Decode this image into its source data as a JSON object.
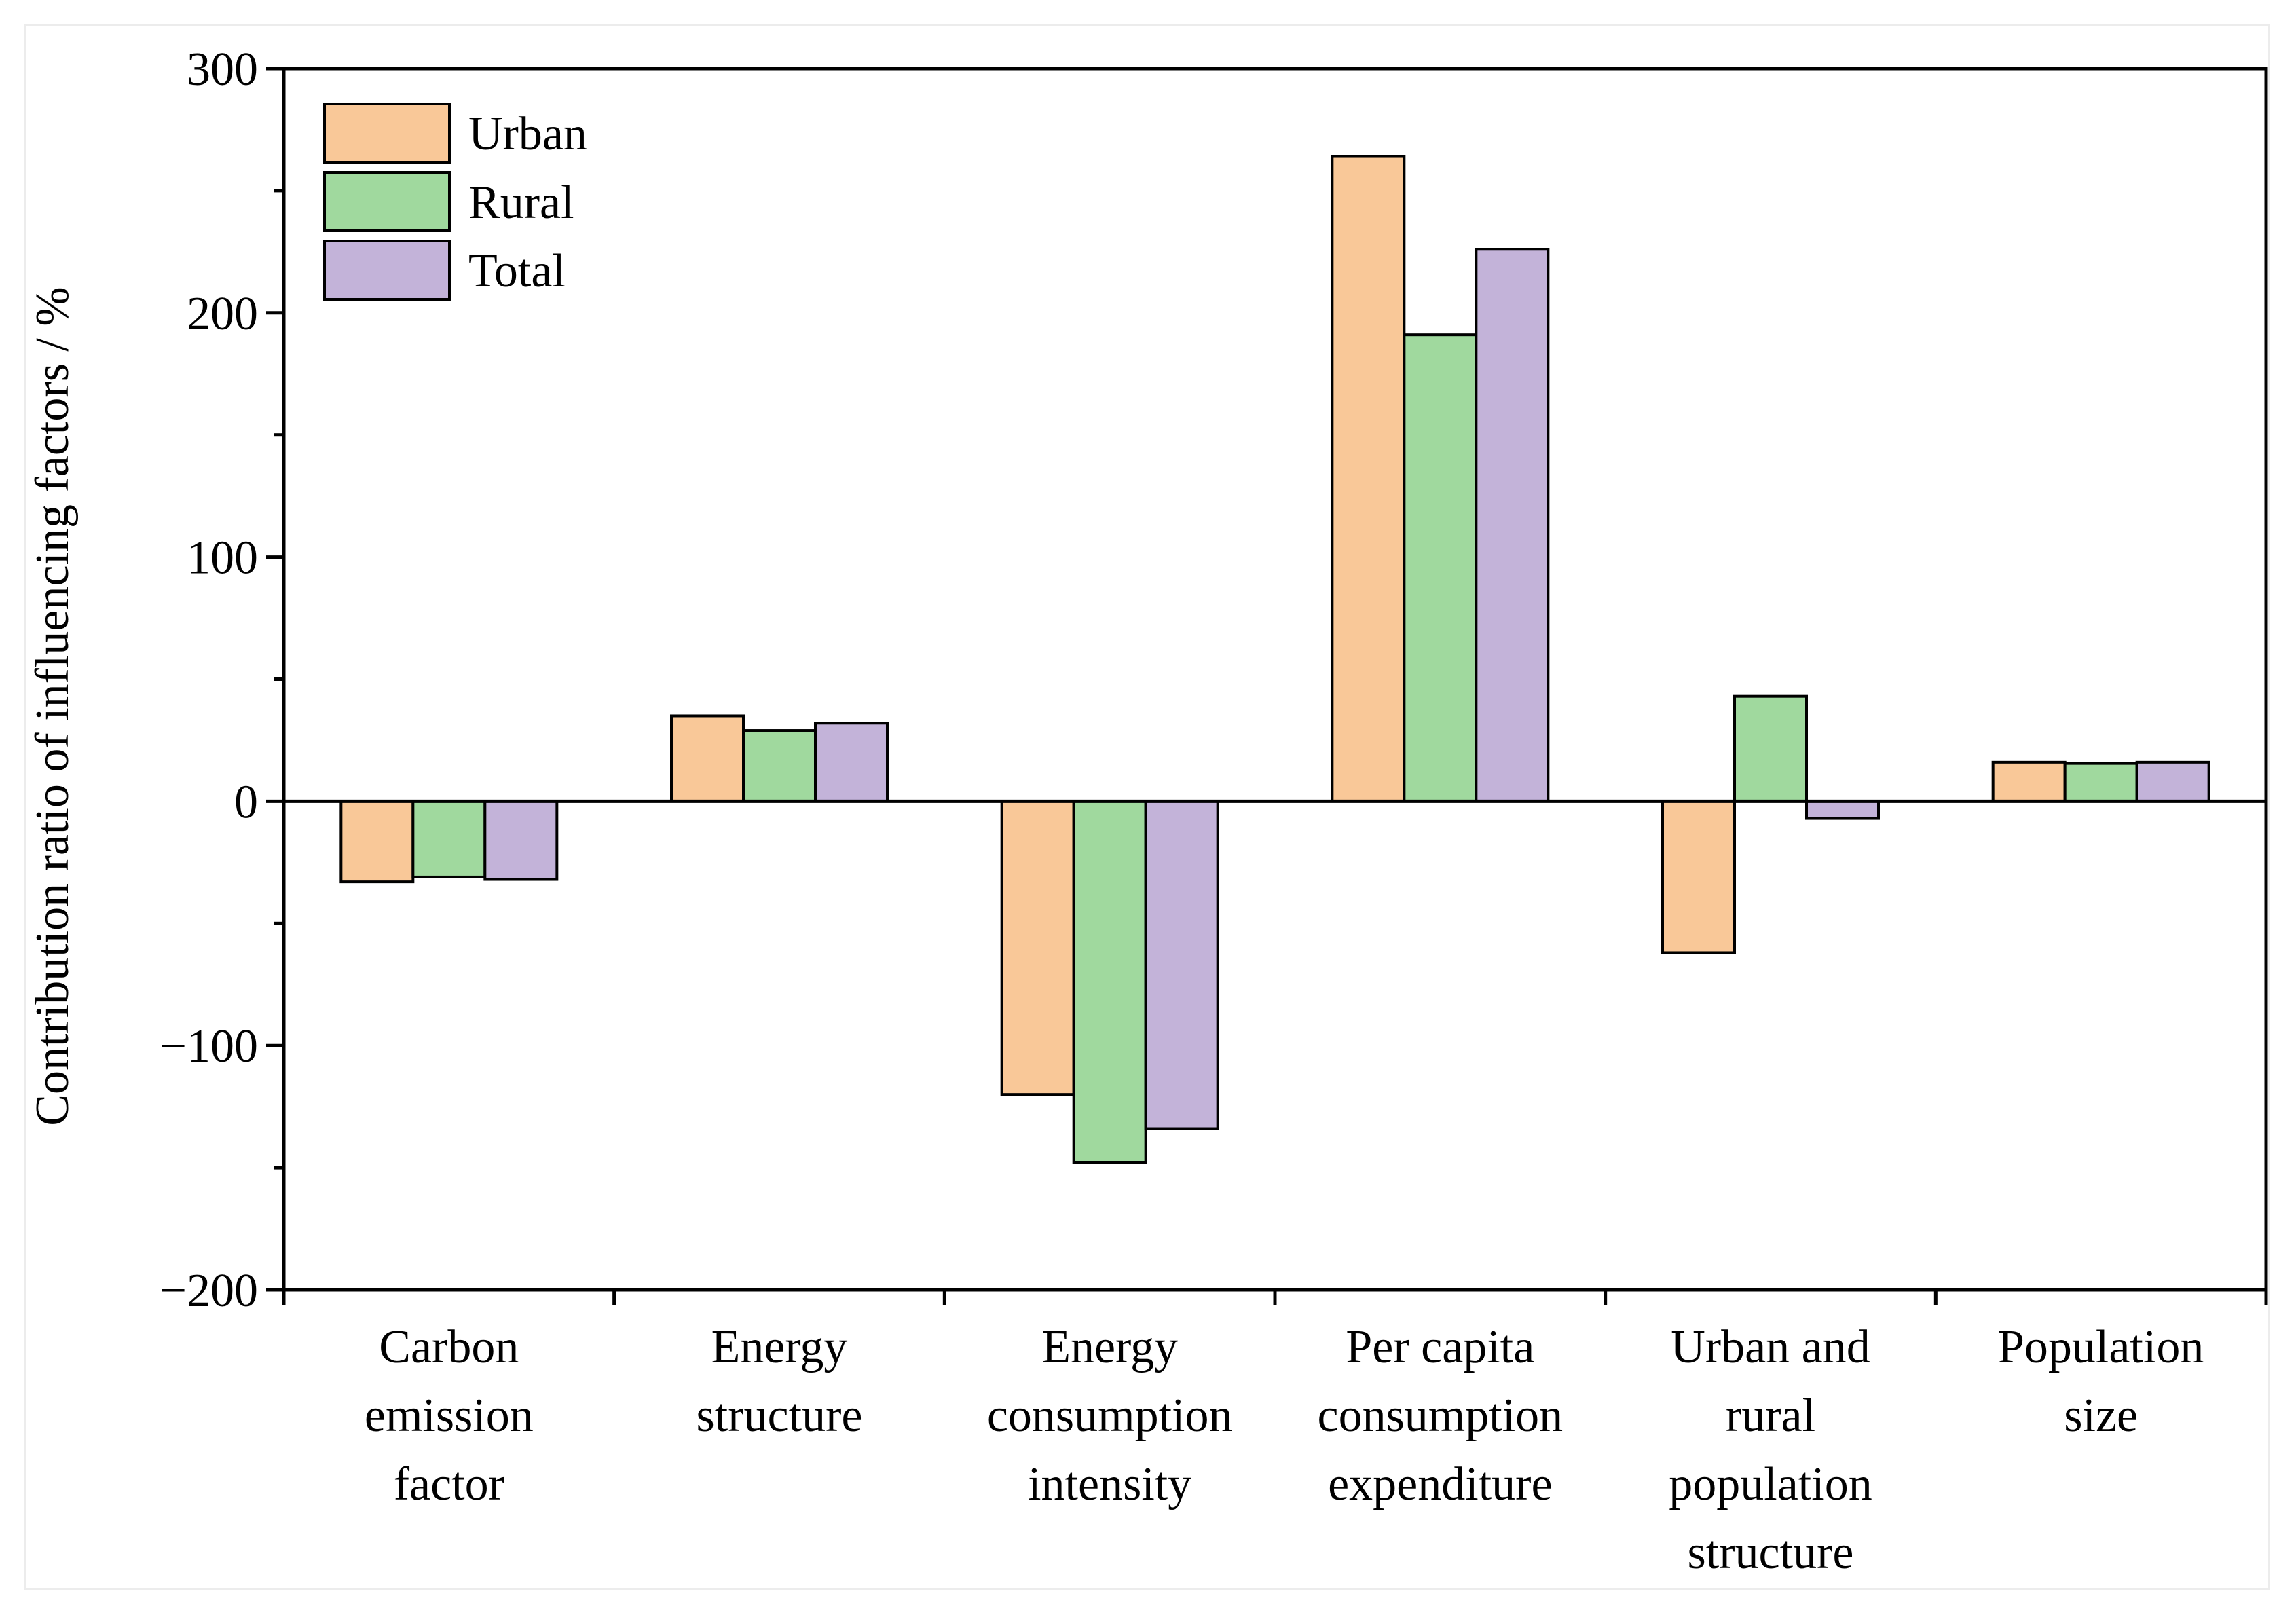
{
  "chart_data": {
    "type": "bar",
    "title": "",
    "xlabel": "",
    "ylabel": "Contribution ratio of influencing factors / %",
    "ylim": [
      -200,
      300
    ],
    "yticks": [
      -200,
      -100,
      0,
      100,
      200,
      300
    ],
    "ytick_labels": [
      "−200",
      "−100",
      "0",
      "100",
      "200",
      "300"
    ],
    "grid": false,
    "legend_position": "top-left",
    "categories": [
      [
        "Carbon",
        "emission",
        "factor"
      ],
      [
        "Energy",
        "structure"
      ],
      [
        "Energy",
        "consumption",
        "intensity"
      ],
      [
        "Per capita",
        "consumption",
        "expenditure"
      ],
      [
        "Urban and",
        "rural",
        "population",
        "structure"
      ],
      [
        "Population",
        "size"
      ]
    ],
    "series": [
      {
        "name": "Urban",
        "color": "#f9c898",
        "values": [
          -33,
          35,
          -120,
          264,
          -62,
          16
        ]
      },
      {
        "name": "Rural",
        "color": "#a0d99e",
        "values": [
          -31,
          29,
          -148,
          191,
          43,
          15.5
        ]
      },
      {
        "name": "Total",
        "color": "#c3b3d9",
        "values": [
          -32,
          32,
          -134,
          226,
          -7,
          16
        ]
      }
    ]
  }
}
